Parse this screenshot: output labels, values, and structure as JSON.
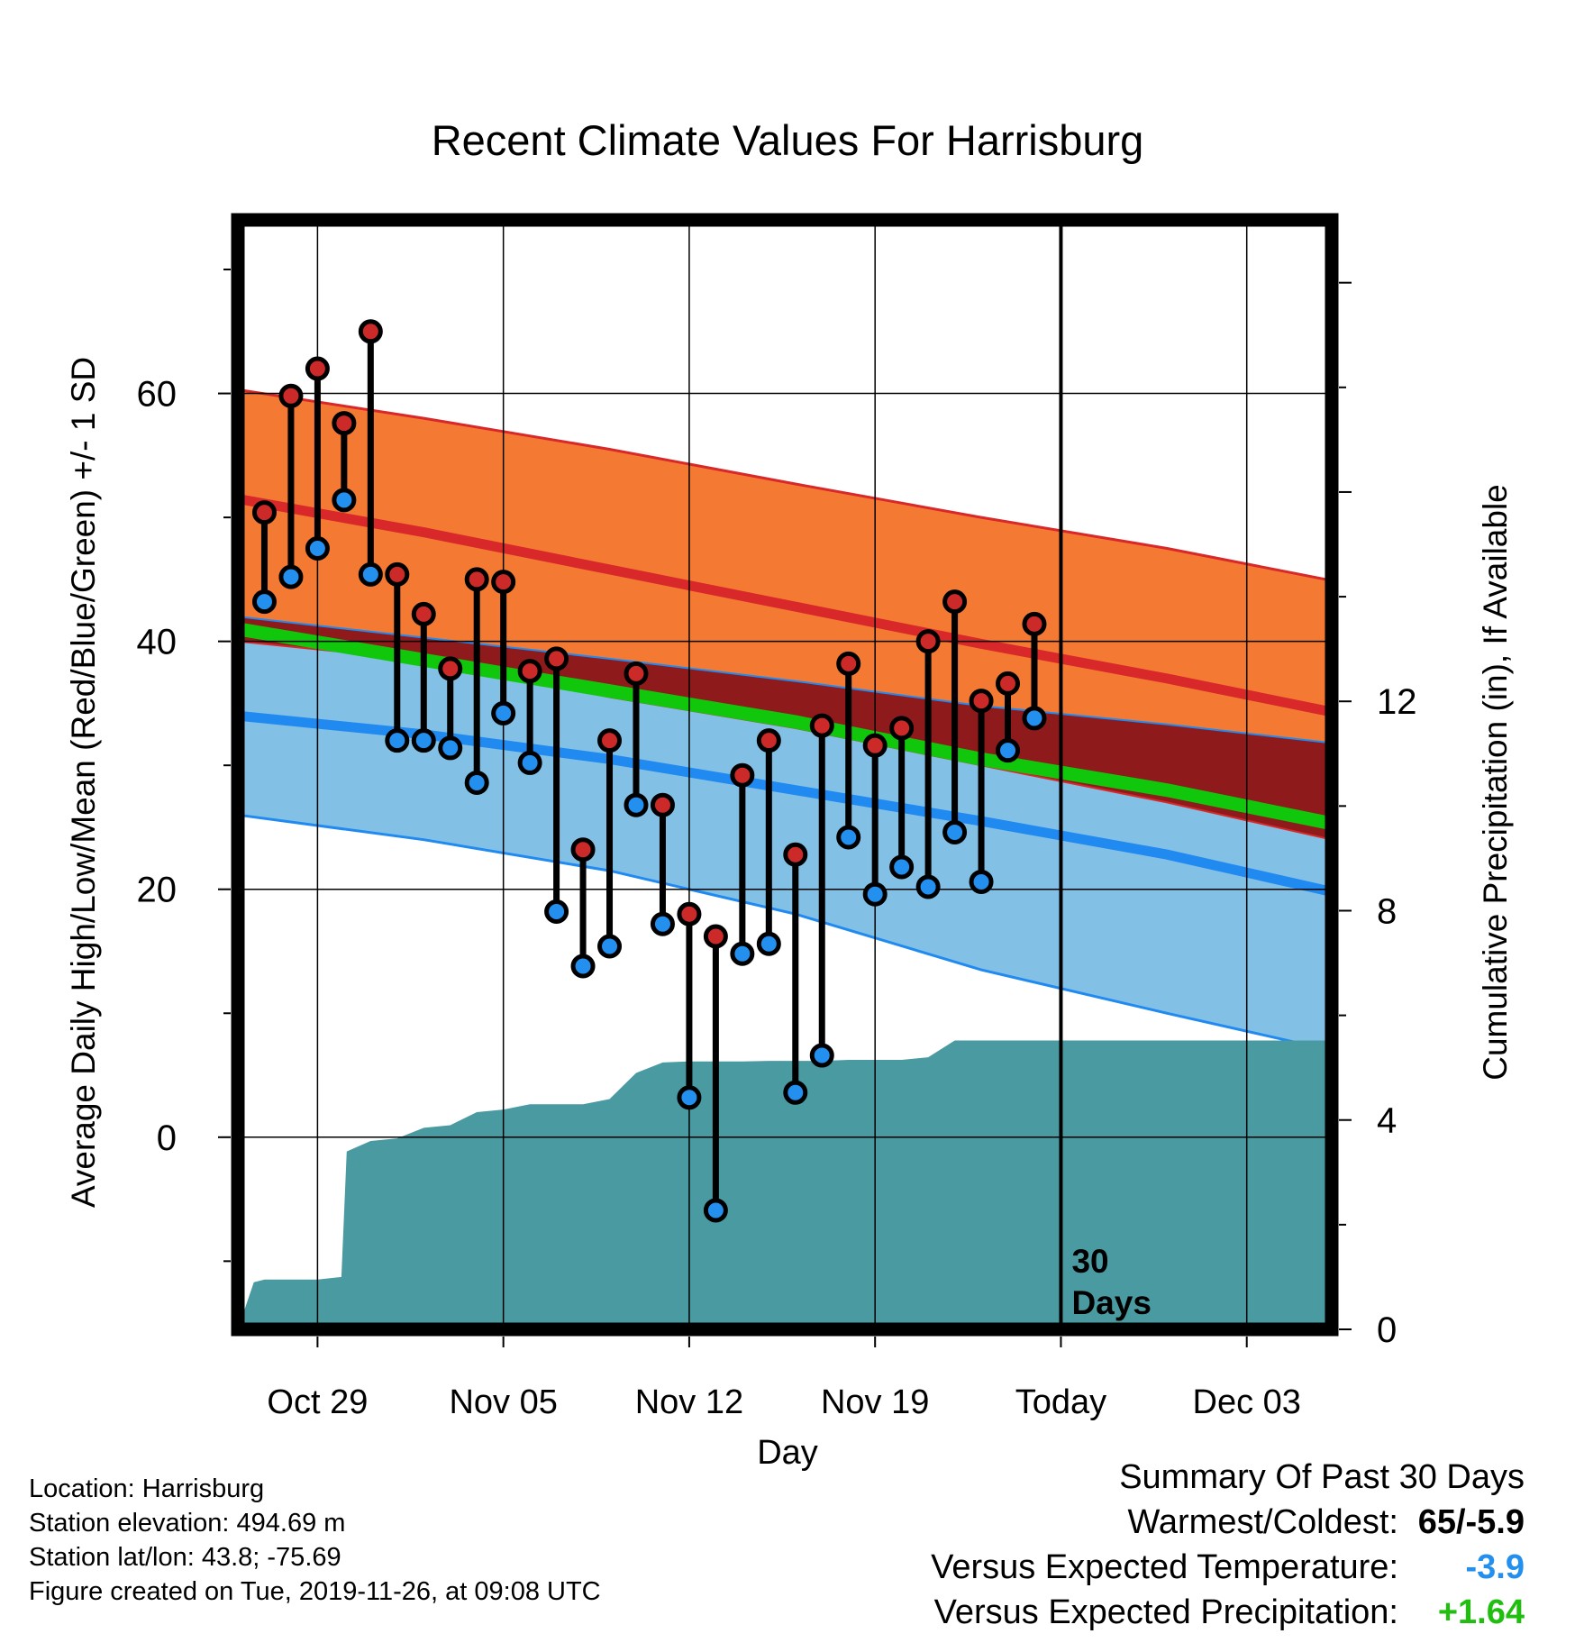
{
  "chart_data": {
    "type": "line",
    "title": "Recent Climate Values For Harrisburg",
    "xlabel": "Day",
    "ylabel": "Average Daily High/Low/Mean (Red/Blue/Green) +/- 1 SD",
    "y2label": "Cumulative Precipitation (in), If Available",
    "x_ticks": [
      "Oct 29",
      "Nov 05",
      "Nov 12",
      "Nov 19",
      "Today",
      "Dec 03"
    ],
    "x_tick_days": [
      3,
      10,
      17,
      24,
      31,
      38
    ],
    "xlim": [
      0,
      41.2
    ],
    "ylim": [
      -15.5,
      74
    ],
    "y_ticks": [
      0,
      20,
      40,
      60
    ],
    "y2lim": [
      0,
      21.2
    ],
    "y2_ticks": [
      0,
      4,
      8,
      12
    ],
    "today_day": 31,
    "today_annotation": "30\nDays",
    "normals": {
      "days": [
        0,
        7,
        14,
        21,
        28,
        35,
        41.2
      ],
      "high_mean": [
        51.5,
        48.8,
        45.8,
        42.8,
        39.8,
        37.0,
        34.3
      ],
      "high_plus_sd": [
        60.3,
        58.0,
        55.5,
        52.7,
        50.0,
        47.5,
        44.9
      ],
      "high_minus_sd": [
        42.0,
        40.3,
        38.6,
        36.8,
        34.8,
        33.3,
        31.8
      ],
      "mean": [
        41.0,
        38.5,
        36.0,
        33.5,
        30.5,
        28.0,
        25.3
      ],
      "low_mean": [
        34.0,
        32.5,
        30.5,
        28.0,
        25.5,
        22.8,
        19.8
      ],
      "low_plus_sd": [
        40.0,
        38.5,
        35.5,
        33.0,
        30.0,
        27.0,
        24.0
      ],
      "low_minus_sd": [
        26.0,
        24.0,
        21.5,
        18.0,
        13.5,
        10.0,
        7.0
      ]
    },
    "series": [
      {
        "name": "High",
        "days": [
          1,
          2,
          3,
          4,
          5,
          6,
          7,
          8,
          9,
          10,
          11,
          12,
          13,
          14,
          15,
          16,
          17,
          18,
          19,
          20,
          21,
          22,
          23,
          24,
          25,
          26,
          27,
          28,
          29,
          30
        ],
        "values": [
          50.4,
          59.8,
          62.0,
          57.6,
          65.0,
          45.4,
          42.2,
          37.8,
          45.0,
          44.8,
          37.6,
          38.6,
          23.2,
          32.0,
          37.4,
          26.8,
          18.0,
          16.2,
          29.2,
          32.0,
          22.8,
          33.2,
          38.2,
          31.6,
          33.0,
          40.0,
          43.2,
          35.2,
          36.6,
          41.4
        ]
      },
      {
        "name": "Low",
        "days": [
          1,
          2,
          3,
          4,
          5,
          6,
          7,
          8,
          9,
          10,
          11,
          12,
          13,
          14,
          15,
          16,
          17,
          18,
          19,
          20,
          21,
          22,
          23,
          24,
          25,
          26,
          27,
          28,
          29,
          30
        ],
        "values": [
          43.2,
          45.2,
          47.5,
          51.4,
          45.4,
          32.0,
          32.0,
          31.4,
          28.6,
          34.2,
          30.2,
          18.2,
          13.8,
          15.4,
          26.8,
          17.2,
          3.2,
          -5.9,
          14.8,
          15.6,
          3.6,
          6.6,
          24.2,
          19.6,
          21.8,
          20.2,
          24.6,
          20.6,
          31.2,
          33.8
        ]
      },
      {
        "name": "Precipitation",
        "days": [
          0,
          0.6,
          1,
          2,
          3,
          3.9,
          4.1,
          5,
          6,
          7,
          8,
          9,
          10,
          11,
          12,
          13,
          14,
          15,
          16,
          17,
          18,
          19,
          20,
          21,
          22,
          23,
          24,
          25,
          26,
          27,
          28,
          29,
          30,
          31,
          35,
          41.2
        ],
        "values": [
          0,
          0.9,
          0.95,
          0.95,
          0.95,
          1.0,
          3.4,
          3.6,
          3.65,
          3.85,
          3.9,
          4.15,
          4.2,
          4.3,
          4.3,
          4.3,
          4.4,
          4.9,
          5.1,
          5.12,
          5.12,
          5.12,
          5.13,
          5.13,
          5.13,
          5.15,
          5.15,
          5.15,
          5.2,
          5.52,
          5.52,
          5.52,
          5.52,
          5.52,
          5.52,
          5.52
        ]
      }
    ],
    "colors": {
      "high_band": "#F47A33",
      "high_line": "#D9282A",
      "overlap": "#8F1A1C",
      "mean": "#11C70C",
      "low_band": "#82C1E5",
      "low_line": "#208AF0",
      "precip": "#4A9AA2",
      "high_dot": "#CC2A28",
      "low_dot": "#2390F0"
    }
  },
  "footer": {
    "location": "Location: Harrisburg",
    "elevation": "Station elevation: 494.69 m",
    "latlon": "Station lat/lon: 43.8; -75.69",
    "created": "Figure created on Tue, 2019-11-26, at 09:08 UTC"
  },
  "summary": {
    "title": "Summary Of Past 30 Days",
    "warmest_label": "Warmest/Coldest:",
    "warmest_value": "65/-5.9",
    "temp_label": "Versus Expected Temperature:",
    "temp_value": "-3.9",
    "temp_color": "#2390F0",
    "precip_label": "Versus Expected Precipitation:",
    "precip_value": "+1.64",
    "precip_color": "#1FBE0F"
  }
}
